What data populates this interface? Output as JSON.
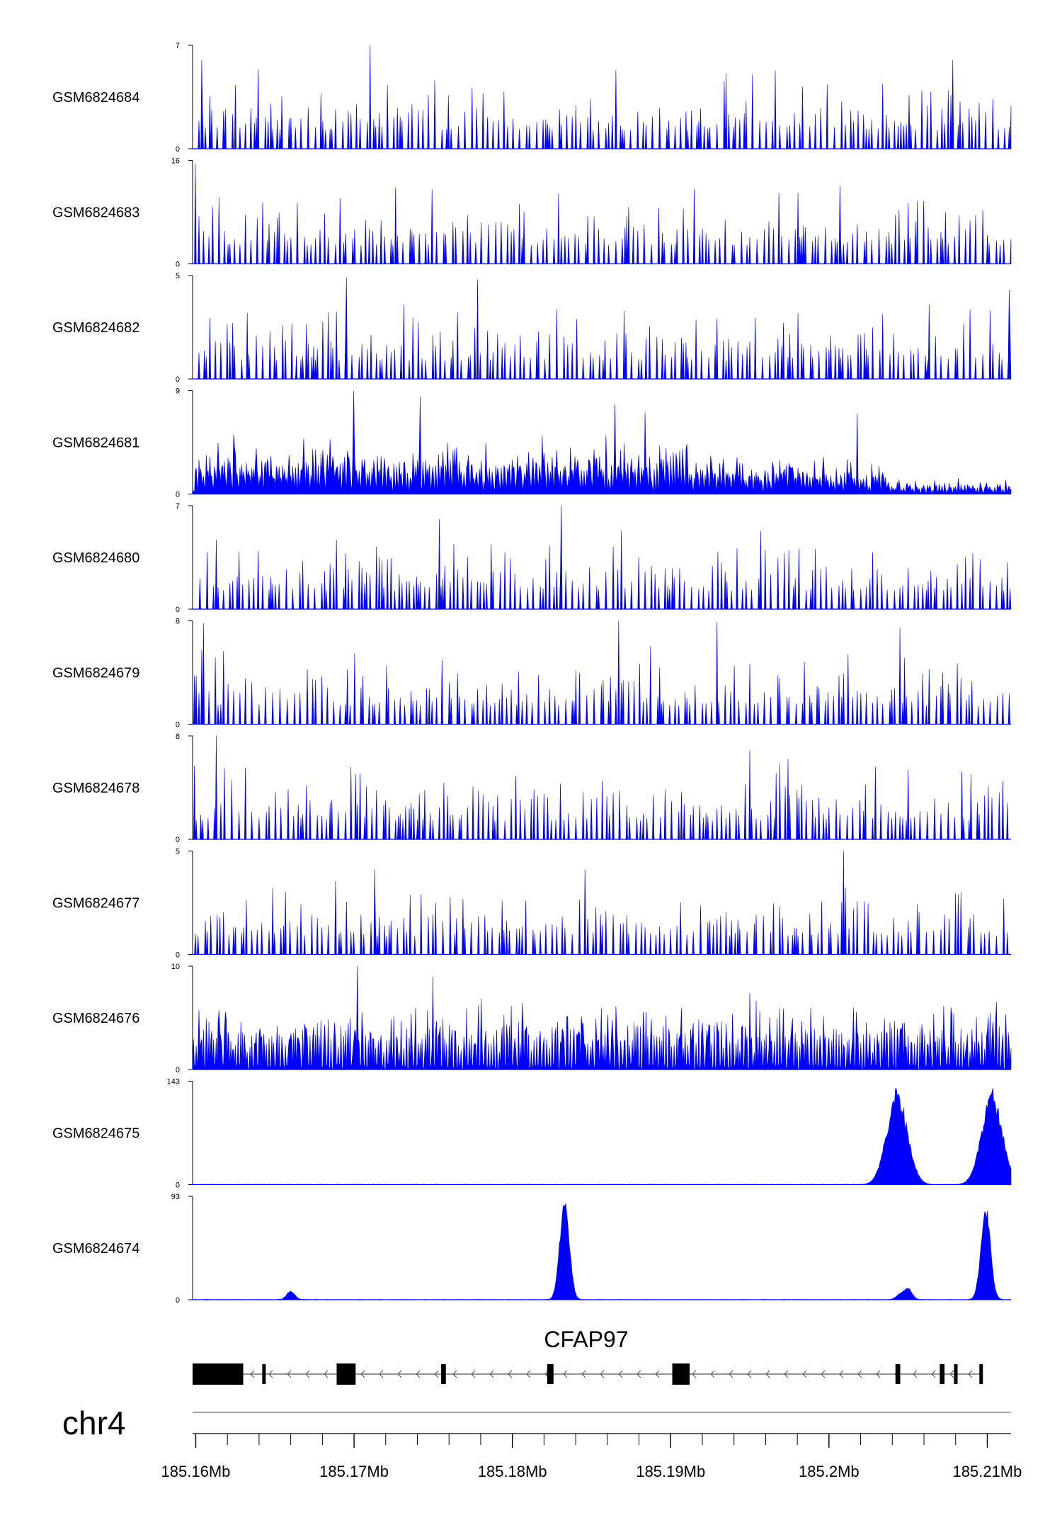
{
  "chart_data": {
    "type": "area",
    "genome_region": {
      "chromosome": "chr4",
      "start": 185159800,
      "end": 185211500
    },
    "gene": {
      "name": "CFAP97",
      "strand": "-",
      "exons": [
        {
          "start": 185159800,
          "end": 185163000,
          "kind": "utr_thick"
        },
        {
          "start": 185164200,
          "end": 185164400,
          "kind": "exon"
        },
        {
          "start": 185168900,
          "end": 185170100,
          "kind": "exon"
        },
        {
          "start": 185175500,
          "end": 185175800,
          "kind": "exon"
        },
        {
          "start": 185182200,
          "end": 185182600,
          "kind": "exon"
        },
        {
          "start": 185190100,
          "end": 185191200,
          "kind": "exon"
        },
        {
          "start": 185204200,
          "end": 185204500,
          "kind": "exon"
        },
        {
          "start": 185207000,
          "end": 185207300,
          "kind": "exon"
        },
        {
          "start": 185207900,
          "end": 185208000,
          "kind": "exon"
        },
        {
          "start": 185209500,
          "end": 185209700,
          "kind": "exon"
        }
      ]
    },
    "x_axis": {
      "ticks": [
        185160000,
        185170000,
        185180000,
        185190000,
        185200000,
        185210000
      ],
      "tick_labels": [
        "185.16Mb",
        "185.17Mb",
        "185.18Mb",
        "185.19Mb",
        "185.2Mb",
        "185.21Mb"
      ],
      "minor_step": 2000
    },
    "series_color": "#0000ff",
    "tracks": [
      {
        "name": "GSM6824684",
        "ymin": 0,
        "ymax": 7,
        "ymax_label": "7",
        "ymin_label": "0",
        "profile": "sparse",
        "peaks": [
          [
            185160400,
            6
          ],
          [
            185171000,
            7.0
          ],
          [
            185193500,
            5.1
          ],
          [
            185196600,
            5.3
          ],
          [
            185207800,
            6.0
          ]
        ]
      },
      {
        "name": "GSM6824683",
        "ymin": 0,
        "ymax": 16,
        "ymax_label": "16",
        "ymin_label": "0",
        "profile": "sparse",
        "peaks": [
          [
            185160000,
            15.5
          ],
          [
            185172600,
            11.8
          ],
          [
            185191500,
            11.6
          ],
          [
            185200700,
            12.0
          ]
        ]
      },
      {
        "name": "GSM6824682",
        "ymin": 0,
        "ymax": 5,
        "ymax_label": "5",
        "ymin_label": "0",
        "profile": "sparse",
        "peaks": [
          [
            185169500,
            4.9
          ],
          [
            185177800,
            4.8
          ],
          [
            185211400,
            4.3
          ]
        ]
      },
      {
        "name": "GSM6824681",
        "ymin": 0,
        "ymax": 9,
        "ymax_label": "9",
        "ymin_label": "0",
        "profile": "dense_decay",
        "peaks": [
          [
            185170000,
            9
          ],
          [
            185174200,
            8.5
          ],
          [
            185186500,
            7.8
          ],
          [
            185188400,
            7.1
          ],
          [
            185201800,
            7.0
          ]
        ]
      },
      {
        "name": "GSM6824680",
        "ymin": 0,
        "ymax": 7,
        "ymax_label": "7",
        "ymin_label": "0",
        "profile": "sparse",
        "peaks": [
          [
            185175400,
            6.1
          ],
          [
            185183100,
            7.0
          ],
          [
            185186900,
            5.3
          ],
          [
            185195700,
            5.3
          ]
        ]
      },
      {
        "name": "GSM6824679",
        "ymin": 0,
        "ymax": 8,
        "ymax_label": "8",
        "ymin_label": "0",
        "profile": "sparse",
        "peaks": [
          [
            185160500,
            7.8
          ],
          [
            185186700,
            8.0
          ],
          [
            185192900,
            7.9
          ],
          [
            185204500,
            7.5
          ]
        ]
      },
      {
        "name": "GSM6824678",
        "ymin": 0,
        "ymax": 8,
        "ymax_label": "8",
        "ymin_label": "0",
        "profile": "sparse",
        "peaks": [
          [
            185161300,
            8.0
          ],
          [
            185195000,
            6.9
          ],
          [
            185197400,
            6.2
          ]
        ]
      },
      {
        "name": "GSM6824677",
        "ymin": 0,
        "ymax": 5,
        "ymax_label": "5",
        "ymin_label": "0",
        "profile": "sparse",
        "peaks": [
          [
            185171300,
            4.1
          ],
          [
            185184600,
            4.1
          ],
          [
            185200900,
            5.0
          ]
        ]
      },
      {
        "name": "GSM6824676",
        "ymin": 0,
        "ymax": 10,
        "ymax_label": "10",
        "ymin_label": "0",
        "profile": "dense",
        "peaks": [
          [
            185170200,
            10.0
          ],
          [
            185175000,
            9.0
          ],
          [
            185195000,
            7.4
          ]
        ]
      },
      {
        "name": "GSM6824675",
        "ymin": 0,
        "ymax": 143,
        "ymax_label": "143",
        "ymin_label": "0",
        "profile": "peaks_only",
        "peaks": [
          [
            185204300,
            142
          ],
          [
            185210300,
            140
          ]
        ]
      },
      {
        "name": "GSM6824674",
        "ymin": 0,
        "ymax": 93,
        "ymax_label": "93",
        "ymin_label": "0",
        "profile": "peaks_only",
        "peaks": [
          [
            185183300,
            93
          ],
          [
            185209900,
            85
          ],
          [
            185166000,
            8
          ],
          [
            185204500,
            5
          ],
          [
            185205000,
            10
          ]
        ]
      }
    ]
  }
}
